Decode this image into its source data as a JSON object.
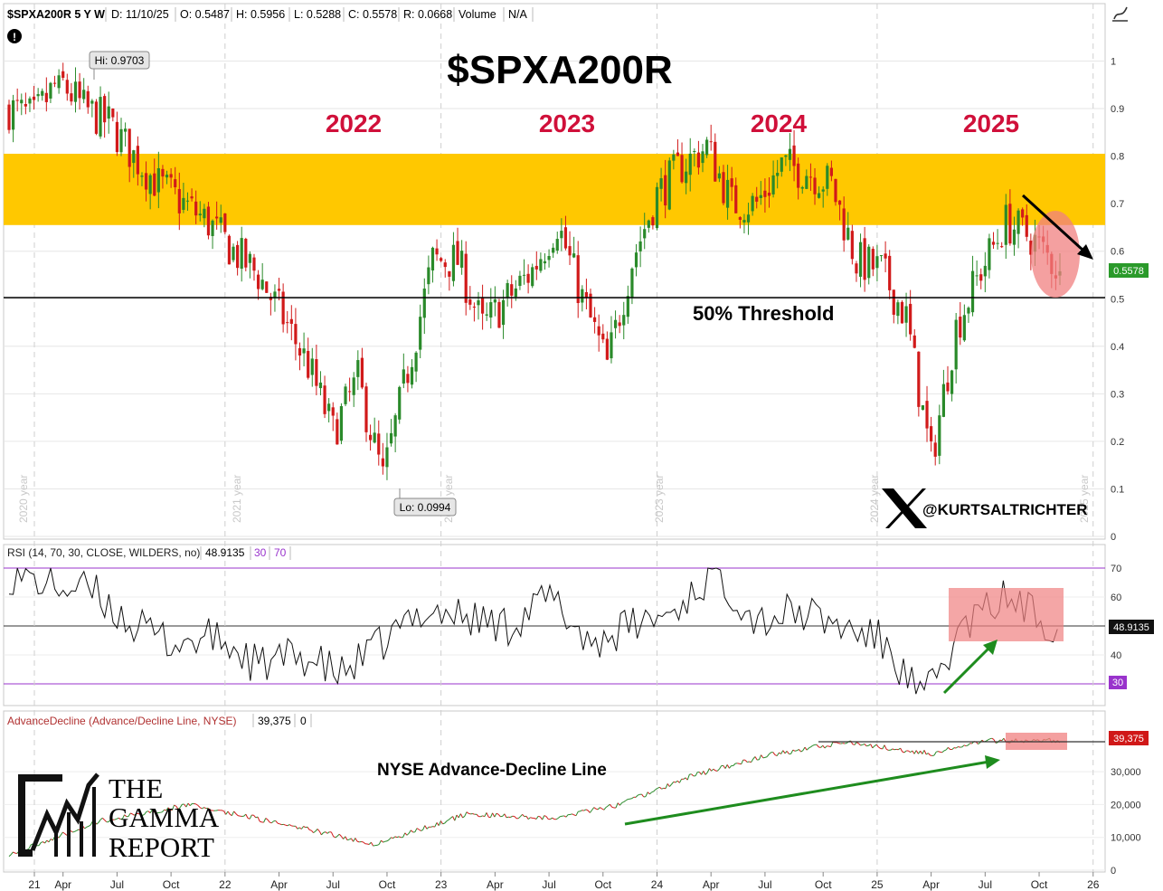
{
  "header": {
    "symbol": "$SPXA200R 5 Y W",
    "date": "D: 11/10/25",
    "open": "O: 0.5487",
    "high": "H: 0.5956",
    "low": "L: 0.5288",
    "close": "C: 0.5578",
    "range": "R: 0.0668",
    "volume_label": "Volume",
    "volume_value": "N/A"
  },
  "title": "$SPXA200R",
  "year_labels": [
    "2022",
    "2023",
    "2024",
    "2025"
  ],
  "threshold_label": "50% Threshold",
  "handle": "@KURTSALTRICHTER",
  "watermark_years": [
    "2020 year",
    "2021 year",
    "2022 year",
    "2023 year",
    "2024 year",
    "2025 year"
  ],
  "hi_label": "Hi: 0.9703",
  "lo_label": "Lo: 0.0994",
  "price_tag": "0.5578",
  "rsi_header": {
    "label": "RSI (14, 70, 30, CLOSE, WILDERS, no)",
    "value": "48.9135",
    "low": "30",
    "high": "70"
  },
  "rsi_tag": "48.9135",
  "rsi_30_tag": "30",
  "ad_header": {
    "label": "AdvanceDecline (Advance/Decline Line, NYSE)",
    "value": "39,375",
    "zero": "0"
  },
  "ad_tag": "39,375",
  "ad_title": "NYSE Advance-Decline Line",
  "logo": {
    "line1": "THE",
    "line2": "GAMMA",
    "line3": "REPORT"
  },
  "colors": {
    "bull": "#2a8a2a",
    "bear": "#d11a1a",
    "band": "#ffc800",
    "year_text": "#d0103a",
    "highlight": "#f08080",
    "tag_green": "#2a9a2a",
    "tag_red": "#d01818",
    "tag_purple": "#9933cc",
    "arrow_green": "#1e8c1e"
  },
  "chart_data": [
    {
      "type": "candlestick",
      "title": "$SPXA200R",
      "frequency": "weekly",
      "ylim": [
        0,
        1.05
      ],
      "y_ticks": [
        "0",
        "0.1",
        "0.2",
        "0.3",
        "0.4",
        "0.5",
        "0.6",
        "0.7",
        "0.8",
        "0.9",
        "1"
      ],
      "resistance_band": [
        0.655,
        0.805
      ],
      "threshold": 0.5,
      "annotations": [
        "Hi: 0.9703",
        "Lo: 0.0994",
        "50% Threshold"
      ],
      "last": {
        "open": 0.5487,
        "high": 0.5956,
        "low": 0.5288,
        "close": 0.5578
      },
      "close_path": {
        "x": [
          "2021-01-04",
          "2021-02-15",
          "2021-03-29",
          "2021-05-10",
          "2021-06-21",
          "2021-08-02",
          "2021-09-13",
          "2021-10-25",
          "2021-12-06",
          "2022-01-17",
          "2022-02-28",
          "2022-04-11",
          "2022-05-23",
          "2022-07-04",
          "2022-08-15",
          "2022-09-26",
          "2022-11-07",
          "2022-12-19",
          "2023-01-30",
          "2023-03-13",
          "2023-04-24",
          "2023-06-05",
          "2023-07-17",
          "2023-08-28",
          "2023-10-09",
          "2023-11-20",
          "2024-01-01",
          "2024-02-12",
          "2024-03-25",
          "2024-05-06",
          "2024-06-17",
          "2024-07-29",
          "2024-09-09",
          "2024-10-21",
          "2024-12-02",
          "2025-01-13",
          "2025-02-24",
          "2025-04-07",
          "2025-05-19",
          "2025-06-30",
          "2025-08-11",
          "2025-09-22",
          "2025-11-10"
        ],
        "y": [
          0.9,
          0.88,
          0.96,
          0.9,
          0.87,
          0.8,
          0.74,
          0.7,
          0.66,
          0.6,
          0.55,
          0.46,
          0.36,
          0.22,
          0.33,
          0.12,
          0.35,
          0.58,
          0.58,
          0.44,
          0.5,
          0.56,
          0.66,
          0.5,
          0.36,
          0.58,
          0.72,
          0.78,
          0.82,
          0.7,
          0.7,
          0.78,
          0.77,
          0.74,
          0.58,
          0.56,
          0.46,
          0.16,
          0.44,
          0.56,
          0.66,
          0.63,
          0.5578
        ]
      }
    },
    {
      "type": "line",
      "title": "RSI (14, 70, 30, CLOSE, WILDERS, no)",
      "ylim": [
        20,
        75
      ],
      "y_ticks": [
        "30",
        "40",
        "50",
        "60",
        "70"
      ],
      "levels": [
        30,
        70
      ],
      "x": [
        "2021-01-04",
        "2021-03-15",
        "2021-05-24",
        "2021-08-02",
        "2021-10-11",
        "2021-12-20",
        "2022-02-28",
        "2022-05-09",
        "2022-07-18",
        "2022-09-26",
        "2022-12-05",
        "2023-02-13",
        "2023-04-24",
        "2023-07-03",
        "2023-09-11",
        "2023-11-20",
        "2024-01-29",
        "2024-04-08",
        "2024-06-17",
        "2024-08-26",
        "2024-11-04",
        "2025-01-13",
        "2025-03-24",
        "2025-06-02",
        "2025-08-11",
        "2025-11-10"
      ],
      "y": [
        68,
        64,
        62,
        50,
        44,
        46,
        36,
        40,
        33,
        44,
        56,
        53,
        50,
        60,
        44,
        50,
        55,
        69,
        52,
        55,
        50,
        45,
        24,
        50,
        60,
        48.9135
      ]
    },
    {
      "type": "line",
      "title": "AdvanceDecline (Advance/Decline Line, NYSE)",
      "ylim": [
        0,
        42000
      ],
      "y_ticks": [
        "0",
        "10,000",
        "20,000",
        "30,000"
      ],
      "x": [
        "2021-01-04",
        "2021-06-07",
        "2021-11-08",
        "2022-04-11",
        "2022-09-12",
        "2023-02-13",
        "2023-07-17",
        "2023-10-30",
        "2024-03-04",
        "2024-07-08",
        "2024-11-11",
        "2025-04-07",
        "2025-07-14",
        "2025-11-10"
      ],
      "y": [
        5000,
        15000,
        20000,
        14000,
        8000,
        17000,
        16000,
        20000,
        29000,
        35000,
        39000,
        35500,
        39500,
        39375
      ]
    }
  ],
  "x_axis_labels": [
    "21",
    "Apr",
    "Jul",
    "Oct",
    "22",
    "Apr",
    "Jul",
    "Oct",
    "23",
    "Apr",
    "Jul",
    "Oct",
    "24",
    "Apr",
    "Jul",
    "Oct",
    "25",
    "Apr",
    "Jul",
    "Oct",
    "26"
  ]
}
